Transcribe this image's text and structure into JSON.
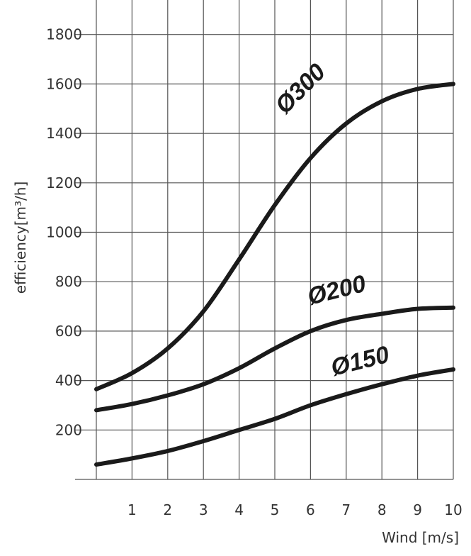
{
  "chart_data": {
    "type": "line",
    "xlabel": "Wind [m/s]",
    "ylabel": "efficiency[m³/h]",
    "xlim": [
      0,
      10
    ],
    "ylim": [
      0,
      1900
    ],
    "x_ticks": [
      "1",
      "2",
      "3",
      "4",
      "5",
      "6",
      "7",
      "8",
      "9",
      "10"
    ],
    "y_ticks": [
      "200",
      "400",
      "600",
      "800",
      "1000",
      "1200",
      "1400",
      "1600",
      "1800"
    ],
    "grid": true,
    "x": [
      0,
      1,
      2,
      3,
      4,
      5,
      6,
      7,
      8,
      9,
      10
    ],
    "series": [
      {
        "name": "Ø300",
        "values": [
          365,
          430,
          530,
          680,
          890,
          1110,
          1300,
          1440,
          1530,
          1580,
          1600
        ]
      },
      {
        "name": "Ø200",
        "values": [
          280,
          305,
          340,
          385,
          450,
          530,
          600,
          645,
          670,
          690,
          695
        ]
      },
      {
        "name": "Ø150",
        "values": [
          60,
          85,
          115,
          155,
          200,
          245,
          300,
          345,
          385,
          420,
          445
        ]
      }
    ]
  }
}
